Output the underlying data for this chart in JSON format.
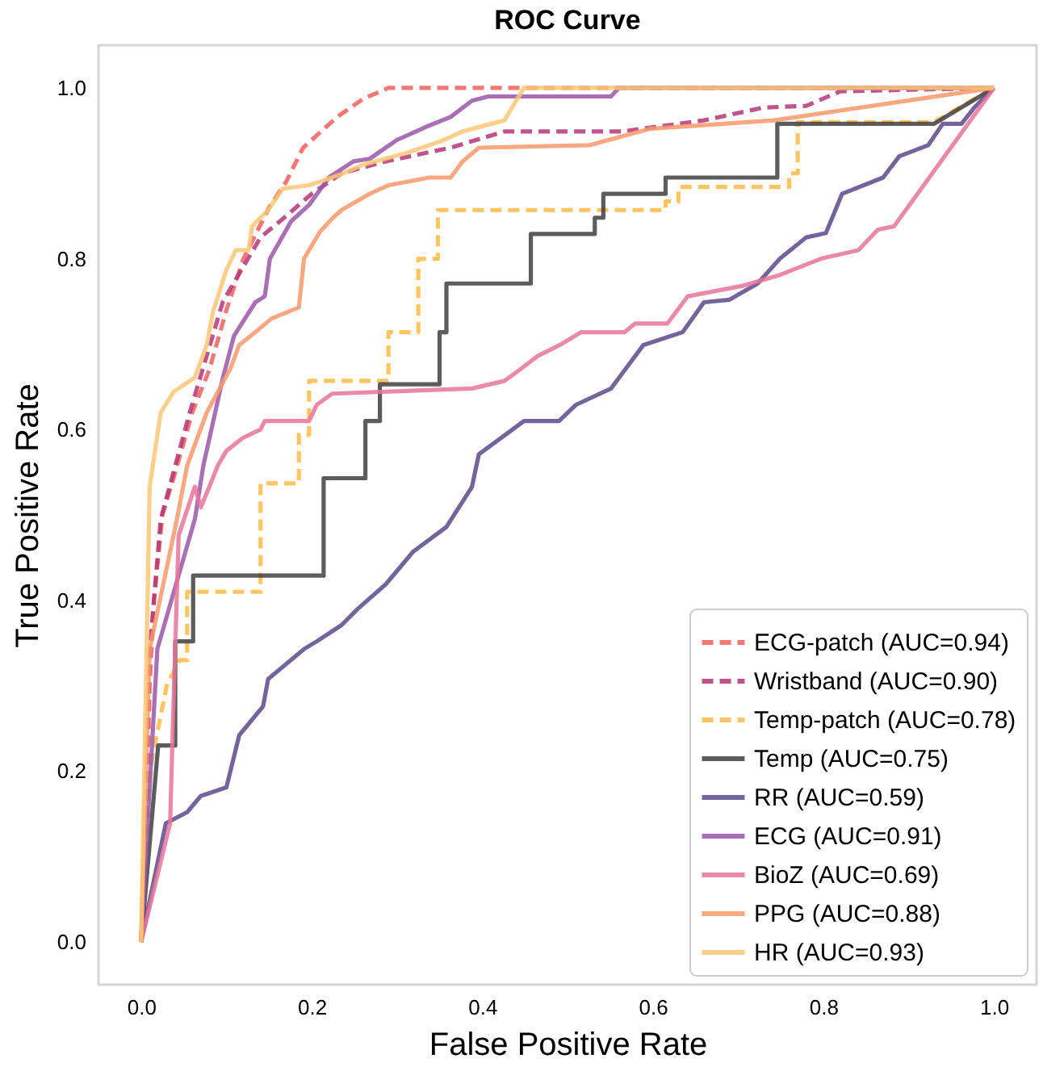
{
  "chart_data": {
    "type": "line",
    "title": "ROC Curve",
    "xlabel": "False Positive Rate",
    "ylabel": "True Positive Rate",
    "xlim": [
      -0.05,
      1.05
    ],
    "ylim": [
      -0.05,
      1.05
    ],
    "xticks": [
      {
        "value": 0,
        "label": "0.0"
      },
      {
        "value": 0.2,
        "label": "0.2"
      },
      {
        "value": 0.4,
        "label": "0.4"
      },
      {
        "value": 0.6,
        "label": "0.6"
      },
      {
        "value": 0.8,
        "label": "0.8"
      },
      {
        "value": 1,
        "label": "1.0"
      }
    ],
    "yticks": [
      {
        "value": 0,
        "label": "0.0"
      },
      {
        "value": 0.2,
        "label": "0.2"
      },
      {
        "value": 0.4,
        "label": "0.4"
      },
      {
        "value": 0.6,
        "label": "0.6"
      },
      {
        "value": 0.8,
        "label": "0.8"
      },
      {
        "value": 1,
        "label": "1.0"
      }
    ],
    "grid": false,
    "legend": "bottom right",
    "marker": "none",
    "series": [
      {
        "name": "ECG-patch (AUC=0.94)",
        "color": "#f0605d",
        "line_style": "dashed",
        "x": [
          0,
          0.005,
          0.01,
          0.015,
          0.025,
          0.04,
          0.06,
          0.08,
          0.1,
          0.12,
          0.15,
          0.17,
          0.19,
          0.23,
          0.26,
          0.29,
          1
        ],
        "values": [
          0,
          0.1,
          0.3,
          0.4,
          0.5,
          0.55,
          0.62,
          0.67,
          0.74,
          0.8,
          0.86,
          0.89,
          0.93,
          0.966,
          0.987,
          1,
          1
        ]
      },
      {
        "name": "Wristband (AUC=0.90)",
        "color": "#b5367a",
        "line_style": "dashed",
        "x": [
          0,
          0.005,
          0.01,
          0.023,
          0.057,
          0.096,
          0.14,
          0.17,
          0.2,
          0.235,
          0.287,
          0.363,
          0.426,
          0.564,
          0.66,
          0.73,
          0.78,
          0.82,
          1
        ],
        "values": [
          0,
          0.15,
          0.34,
          0.495,
          0.62,
          0.75,
          0.825,
          0.85,
          0.876,
          0.9,
          0.914,
          0.93,
          0.949,
          0.949,
          0.962,
          0.977,
          0.979,
          0.996,
          1
        ]
      },
      {
        "name": "Temp-patch (AUC=0.78)",
        "color": "#febb47",
        "line_style": "dashed",
        "x": [
          0,
          0.01,
          0.03,
          0.045,
          0.054,
          0.054,
          0.14,
          0.14,
          0.185,
          0.185,
          0.197,
          0.197,
          0.29,
          0.29,
          0.325,
          0.325,
          0.348,
          0.348,
          0.615,
          0.615,
          0.63,
          0.63,
          0.76,
          0.76,
          0.77,
          0.77,
          0.93,
          1
        ],
        "values": [
          0,
          0.2,
          0.3,
          0.33,
          0.33,
          0.41,
          0.41,
          0.537,
          0.537,
          0.594,
          0.594,
          0.657,
          0.657,
          0.714,
          0.714,
          0.8,
          0.8,
          0.857,
          0.857,
          0.867,
          0.867,
          0.884,
          0.884,
          0.9,
          0.9,
          0.96,
          0.96,
          1
        ]
      },
      {
        "name": "Temp (AUC=0.75)",
        "color": "#404040",
        "line_style": "solid",
        "x": [
          0,
          0.02,
          0.04,
          0.04,
          0.061,
          0.061,
          0.214,
          0.214,
          0.263,
          0.263,
          0.28,
          0.28,
          0.35,
          0.35,
          0.358,
          0.358,
          0.457,
          0.457,
          0.532,
          0.532,
          0.542,
          0.542,
          0.615,
          0.615,
          0.746,
          0.746,
          0.93,
          1
        ],
        "values": [
          0,
          0.23,
          0.23,
          0.352,
          0.352,
          0.429,
          0.429,
          0.543,
          0.543,
          0.61,
          0.61,
          0.653,
          0.653,
          0.714,
          0.714,
          0.771,
          0.771,
          0.829,
          0.829,
          0.848,
          0.848,
          0.876,
          0.876,
          0.895,
          0.895,
          0.958,
          0.958,
          1
        ]
      },
      {
        "name": "RR (AUC=0.59)",
        "color": "#5b4a8b",
        "line_style": "solid",
        "x": [
          0,
          0.013,
          0.029,
          0.054,
          0.07,
          0.1,
          0.115,
          0.143,
          0.149,
          0.191,
          0.206,
          0.235,
          0.254,
          0.287,
          0.319,
          0.358,
          0.388,
          0.396,
          0.449,
          0.49,
          0.51,
          0.551,
          0.589,
          0.635,
          0.66,
          0.69,
          0.723,
          0.749,
          0.78,
          0.803,
          0.822,
          0.87,
          0.889,
          0.923,
          0.94,
          0.962,
          0.977,
          1
        ],
        "values": [
          0,
          0.063,
          0.139,
          0.152,
          0.171,
          0.181,
          0.242,
          0.276,
          0.308,
          0.343,
          0.352,
          0.371,
          0.39,
          0.419,
          0.457,
          0.486,
          0.533,
          0.571,
          0.61,
          0.61,
          0.629,
          0.648,
          0.699,
          0.714,
          0.749,
          0.752,
          0.771,
          0.8,
          0.825,
          0.83,
          0.876,
          0.895,
          0.92,
          0.933,
          0.958,
          0.958,
          0.977,
          1
        ]
      },
      {
        "name": "ECG (AUC=0.91)",
        "color": "#9a57a8",
        "line_style": "solid",
        "x": [
          0,
          0.019,
          0.063,
          0.073,
          0.096,
          0.109,
          0.134,
          0.145,
          0.151,
          0.176,
          0.197,
          0.22,
          0.249,
          0.268,
          0.3,
          0.338,
          0.363,
          0.388,
          0.407,
          0.551,
          0.56,
          1
        ],
        "values": [
          0,
          0.343,
          0.495,
          0.558,
          0.661,
          0.71,
          0.749,
          0.756,
          0.8,
          0.844,
          0.863,
          0.895,
          0.914,
          0.917,
          0.939,
          0.956,
          0.966,
          0.985,
          0.99,
          0.99,
          1,
          1
        ]
      },
      {
        "name": "BioZ (AUC=0.69)",
        "color": "#e8749a",
        "line_style": "solid",
        "x": [
          0,
          0.034,
          0.038,
          0.044,
          0.063,
          0.07,
          0.08,
          0.09,
          0.1,
          0.119,
          0.14,
          0.145,
          0.197,
          0.206,
          0.224,
          0.388,
          0.426,
          0.44,
          0.465,
          0.491,
          0.516,
          0.567,
          0.579,
          0.617,
          0.641,
          0.704,
          0.749,
          0.797,
          0.841,
          0.864,
          0.883,
          1
        ],
        "values": [
          0,
          0.139,
          0.28,
          0.476,
          0.533,
          0.509,
          0.533,
          0.558,
          0.575,
          0.59,
          0.6,
          0.61,
          0.61,
          0.629,
          0.642,
          0.648,
          0.657,
          0.667,
          0.686,
          0.699,
          0.714,
          0.714,
          0.724,
          0.724,
          0.756,
          0.768,
          0.781,
          0.8,
          0.81,
          0.834,
          0.838,
          1
        ]
      },
      {
        "name": "PPG (AUC=0.88)",
        "color": "#f9996b",
        "line_style": "solid",
        "x": [
          0,
          0.01,
          0.042,
          0.054,
          0.077,
          0.105,
          0.115,
          0.134,
          0.153,
          0.185,
          0.191,
          0.21,
          0.225,
          0.235,
          0.268,
          0.29,
          0.338,
          0.363,
          0.377,
          0.396,
          0.526,
          0.596,
          0.742,
          1
        ],
        "values": [
          0,
          0.343,
          0.495,
          0.558,
          0.62,
          0.672,
          0.699,
          0.714,
          0.73,
          0.743,
          0.8,
          0.832,
          0.848,
          0.857,
          0.876,
          0.886,
          0.895,
          0.895,
          0.914,
          0.93,
          0.933,
          0.952,
          0.962,
          1
        ]
      },
      {
        "name": "HR (AUC=0.93)",
        "color": "#fdc776",
        "line_style": "solid",
        "x": [
          0,
          0.01,
          0.023,
          0.038,
          0.063,
          0.077,
          0.084,
          0.1,
          0.111,
          0.126,
          0.13,
          0.149,
          0.166,
          0.197,
          0.235,
          0.26,
          0.312,
          0.35,
          0.377,
          0.426,
          0.435,
          0.449,
          1
        ],
        "values": [
          0,
          0.533,
          0.62,
          0.644,
          0.661,
          0.699,
          0.737,
          0.787,
          0.81,
          0.81,
          0.838,
          0.857,
          0.882,
          0.886,
          0.899,
          0.91,
          0.924,
          0.937,
          0.949,
          0.962,
          0.977,
          1,
          1
        ]
      }
    ]
  }
}
